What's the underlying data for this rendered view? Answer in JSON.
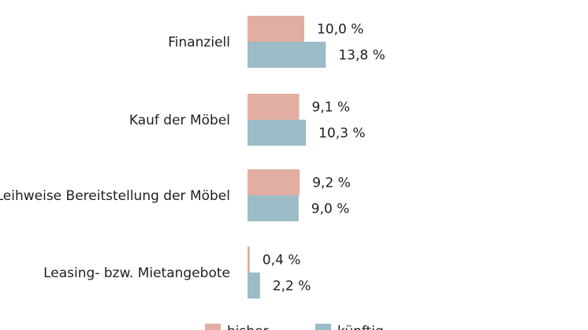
{
  "chart_data": {
    "type": "bar",
    "orientation": "horizontal",
    "categories": [
      "Finanziell",
      "Kauf der Möbel",
      "Leihweise Bereitstellung der Möbel",
      "Leasing- bzw. Mietangebote"
    ],
    "series": [
      {
        "name": "bisher",
        "color": "#e2aea1",
        "values": [
          10.0,
          9.1,
          9.2,
          0.4
        ],
        "labels": [
          "10,0 %",
          "9,1 %",
          "9,2 %",
          "0,4 %"
        ]
      },
      {
        "name": "künftig",
        "color": "#9bbbc6",
        "values": [
          13.8,
          10.3,
          9.0,
          2.2
        ],
        "labels": [
          "13,8 %",
          "10,3 %",
          "9,0 %",
          "2,2 %"
        ]
      }
    ],
    "xlim": [
      0,
      100
    ],
    "unit": "%",
    "grid": false,
    "legend_position": "bottom"
  }
}
